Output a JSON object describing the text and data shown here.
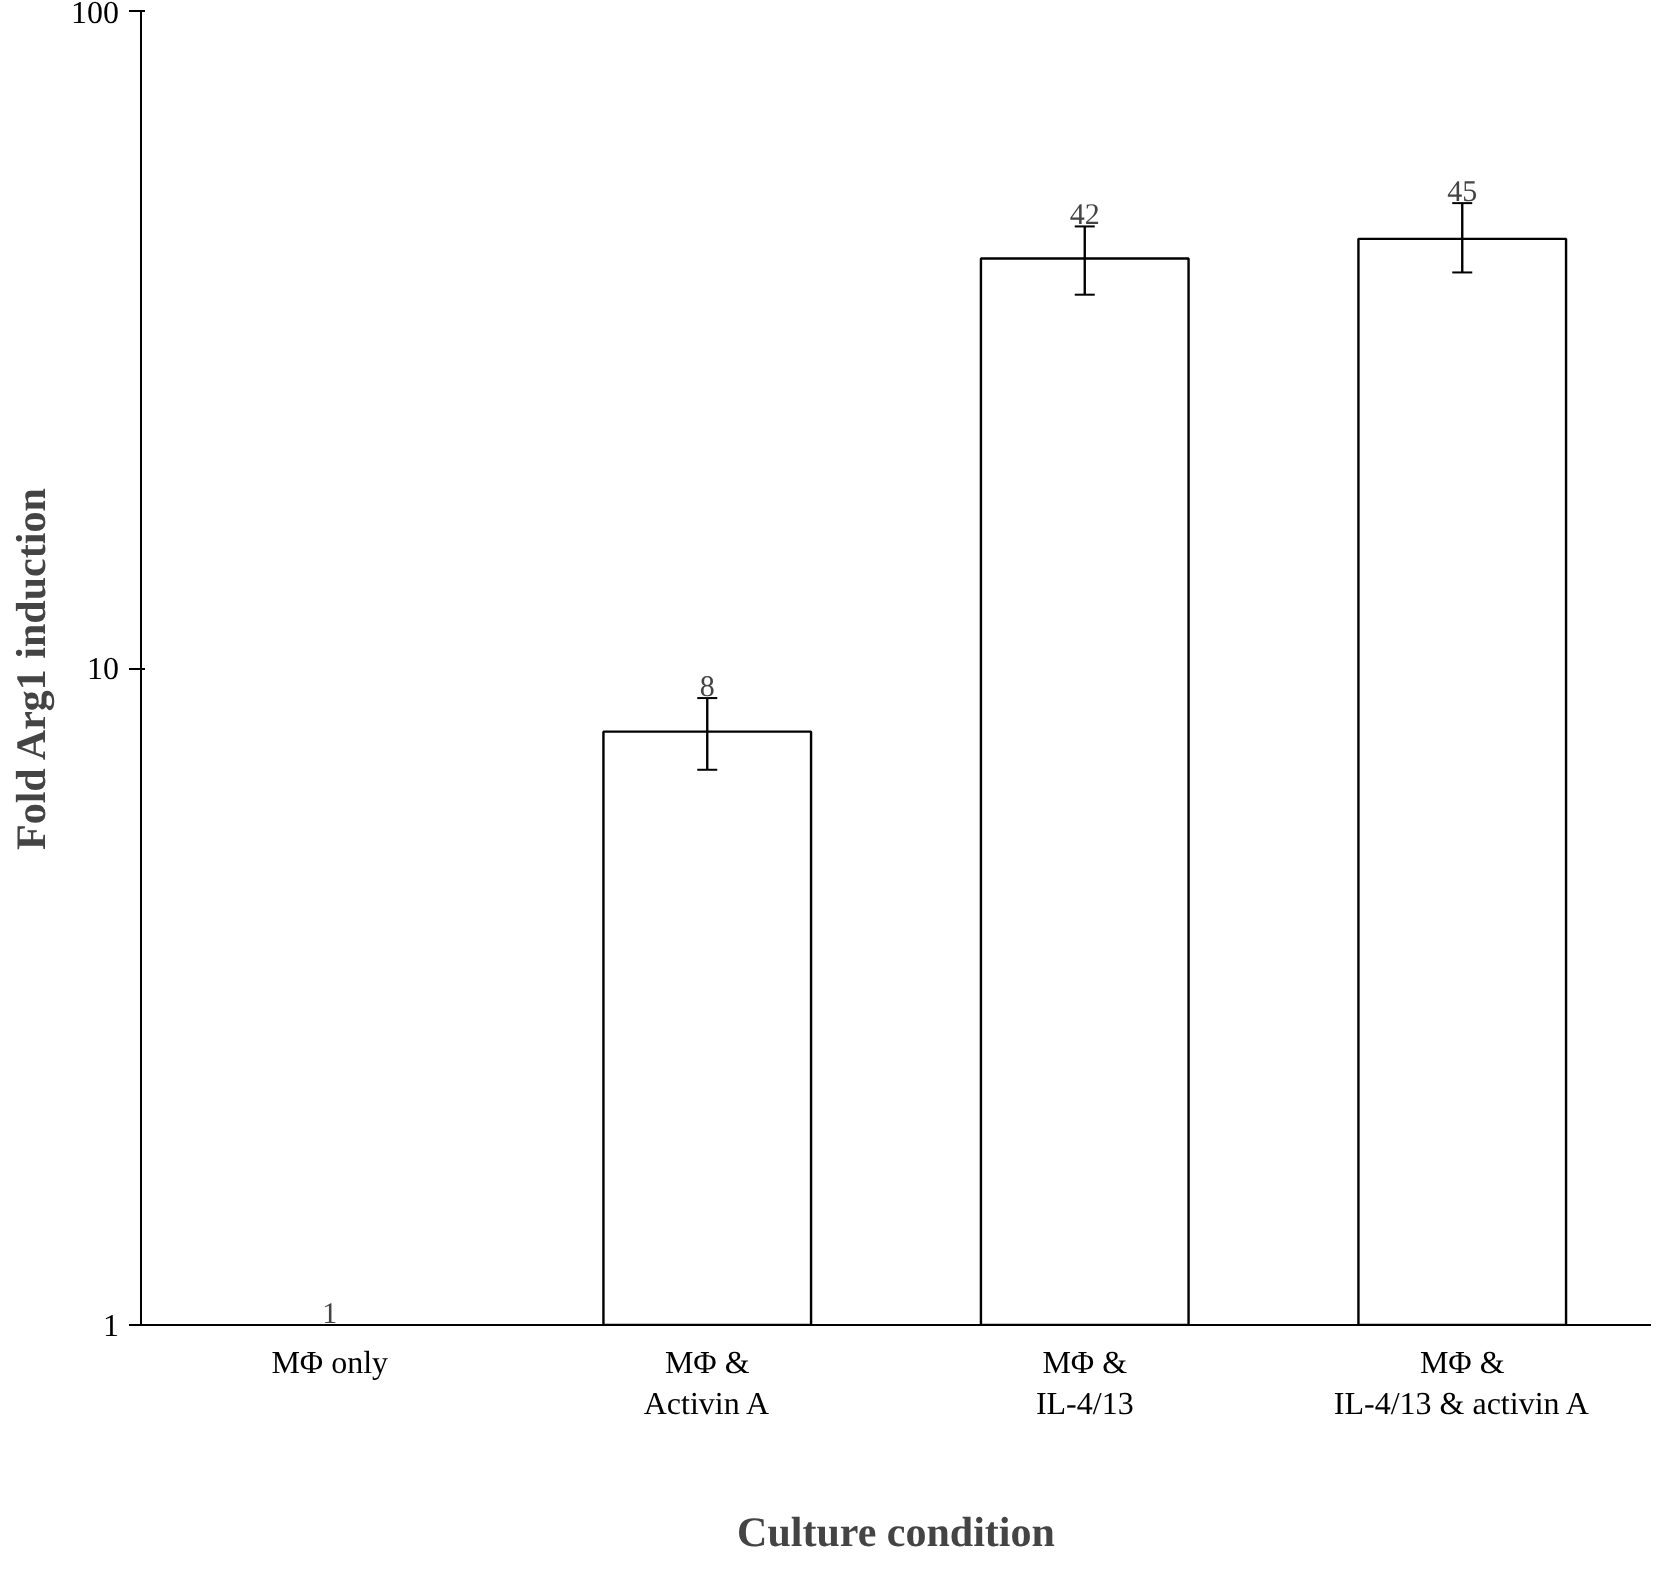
{
  "chart_data": {
    "type": "bar",
    "xlabel": "Culture condition",
    "ylabel": "Fold Arg1 induction",
    "categories": [
      "MΦ only",
      "MΦ &\nActivin A",
      "MΦ &\nIL-4/13",
      "MΦ &\nIL-4/13 & activin A"
    ],
    "values": [
      1,
      8,
      42,
      45
    ],
    "errors": [
      null,
      [
        7,
        9
      ],
      [
        37,
        47
      ],
      [
        40,
        51
      ]
    ],
    "color": "#ffffff",
    "log": true,
    "ylim": [
      1,
      100
    ],
    "yticks": [
      1,
      10,
      100
    ],
    "data_labels": true,
    "grid": false
  }
}
